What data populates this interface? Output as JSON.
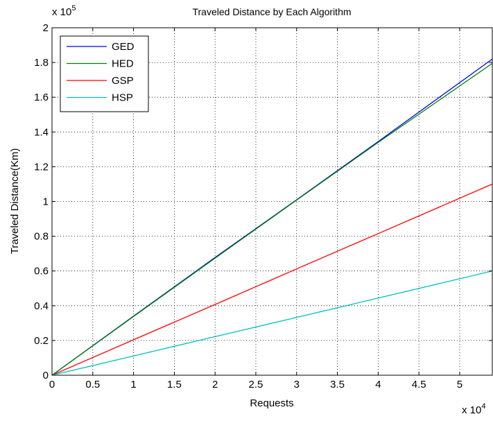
{
  "chart_data": {
    "type": "line",
    "title": "Traveled Distance by Each Algorithm",
    "xlabel": "Requests",
    "ylabel": "Traveled Distance(Km)",
    "x_exponent_label": "x 10",
    "x_exponent": "4",
    "y_exponent_label": "x 10",
    "y_exponent": "5",
    "xlim": [
      0,
      54000
    ],
    "ylim": [
      0,
      200000
    ],
    "x_ticks": [
      0,
      5000,
      10000,
      15000,
      20000,
      25000,
      30000,
      35000,
      40000,
      45000,
      50000
    ],
    "x_tick_labels": [
      "0",
      "0.5",
      "1",
      "1.5",
      "2",
      "2.5",
      "3",
      "3.5",
      "4",
      "4.5",
      "5"
    ],
    "y_ticks": [
      0,
      20000,
      40000,
      60000,
      80000,
      100000,
      120000,
      140000,
      160000,
      180000,
      200000
    ],
    "y_tick_labels": [
      "0",
      "0.2",
      "0.4",
      "0.6",
      "0.8",
      "1",
      "1.2",
      "1.4",
      "1.6",
      "1.8",
      "2"
    ],
    "grid": true,
    "legend_position": "top-left",
    "series": [
      {
        "name": "GED",
        "color": "#0000ff",
        "x": [
          0,
          10000,
          20000,
          30000,
          40000,
          54000
        ],
        "y": [
          0,
          34000,
          67800,
          101000,
          134500,
          182000
        ]
      },
      {
        "name": "HED",
        "color": "#008000",
        "x": [
          0,
          10000,
          20000,
          30000,
          40000,
          54000
        ],
        "y": [
          0,
          33800,
          67400,
          100800,
          134000,
          179500
        ]
      },
      {
        "name": "GSP",
        "color": "#ff0000",
        "x": [
          0,
          10000,
          20000,
          30000,
          40000,
          54000
        ],
        "y": [
          0,
          20400,
          40700,
          61200,
          81500,
          110000
        ]
      },
      {
        "name": "HSP",
        "color": "#00bfbf",
        "x": [
          0,
          10000,
          20000,
          30000,
          40000,
          54000
        ],
        "y": [
          0,
          11100,
          22200,
          33300,
          44400,
          60000
        ]
      }
    ]
  }
}
